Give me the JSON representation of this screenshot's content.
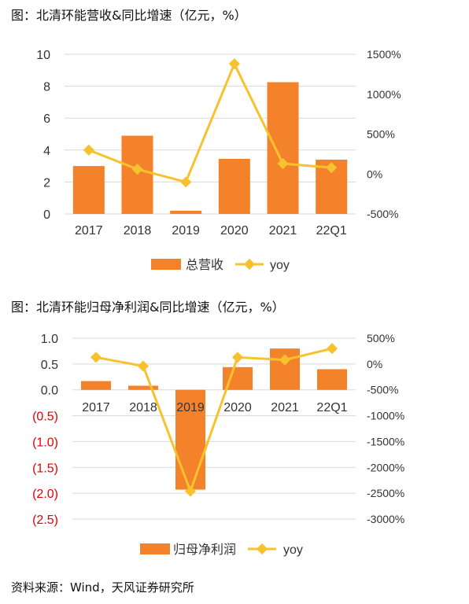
{
  "colors": {
    "bar": "#f4822a",
    "line": "#f7c22e",
    "negative_label": "#e60000",
    "axis_text": "#333333",
    "grid": "#d9d9d9"
  },
  "chart_data": [
    {
      "type": "bar",
      "title": "图：北清环能营收&同比增速（亿元，%）",
      "categories": [
        "2017",
        "2018",
        "2019",
        "2020",
        "2021",
        "22Q1"
      ],
      "series": [
        {
          "name": "总营收",
          "type": "bar",
          "axis": "left",
          "values": [
            3.0,
            4.9,
            0.2,
            3.45,
            8.25,
            3.4
          ]
        },
        {
          "name": "yoy",
          "type": "line",
          "axis": "right",
          "values": [
            300,
            60,
            -100,
            1380,
            130,
            80
          ]
        }
      ],
      "ylim": [
        0,
        10
      ],
      "yticks": [
        "0",
        "2",
        "4",
        "6",
        "8",
        "10"
      ],
      "y2lim": [
        -500,
        1500
      ],
      "y2ticks": [
        "-500%",
        "0%",
        "500%",
        "1000%",
        "1500%"
      ],
      "grid": true,
      "legend": "bottom"
    },
    {
      "type": "bar",
      "title": "图：北清环能归母净利润&同比增速（亿元，%）",
      "categories": [
        "2017",
        "2018",
        "2019",
        "2020",
        "2021",
        "22Q1"
      ],
      "series": [
        {
          "name": "归母净利润",
          "type": "bar",
          "axis": "left",
          "values": [
            0.17,
            0.08,
            -1.93,
            0.44,
            0.8,
            0.4
          ]
        },
        {
          "name": "yoy",
          "type": "line",
          "axis": "right",
          "values": [
            130,
            -40,
            -2460,
            130,
            80,
            300
          ]
        }
      ],
      "ylim": [
        -2.5,
        1.0
      ],
      "yticks": [
        "1.0",
        "0.5",
        "0.0",
        "(0.5)",
        "(1.0)",
        "(1.5)",
        "(2.0)",
        "(2.5)"
      ],
      "y2lim": [
        -3000,
        500
      ],
      "y2ticks": [
        "500%",
        "0%",
        "-500%",
        "-1000%",
        "-1500%",
        "-2000%",
        "-2500%",
        "-3000%"
      ],
      "grid": true,
      "legend": "bottom"
    }
  ],
  "source": "资料来源：Wind，天风证券研究所"
}
